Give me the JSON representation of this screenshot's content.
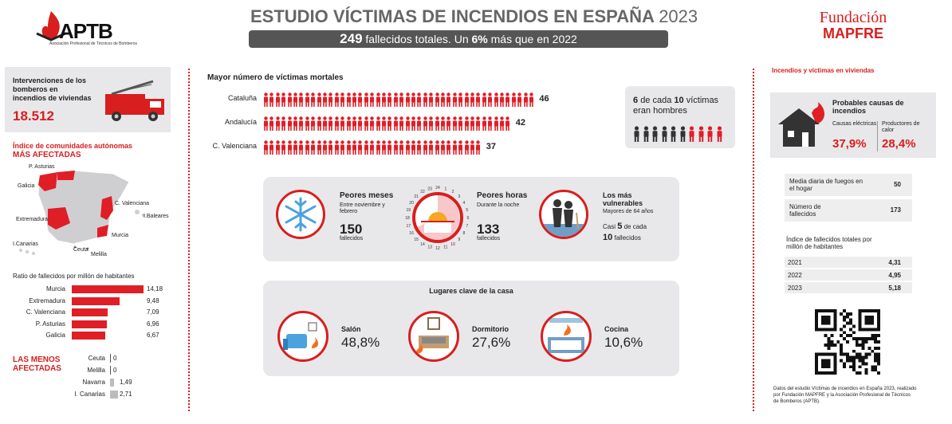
{
  "header": {
    "title_main": "ESTUDIO VÍCTIMAS DE INCENDIOS EN ESPAÑA",
    "title_year": "2023",
    "subtitle_num": "249",
    "subtitle_mid": "fallecidos totales. Un",
    "subtitle_pct": "6%",
    "subtitle_end": "más que en 2022"
  },
  "logos": {
    "aptb": "APTB",
    "aptb_sub": "Asociación Profesional de Técnicos de Bomberos",
    "fm_line1": "Fundación",
    "fm_line2": "MAPFRE"
  },
  "left": {
    "interventions_label": "Intervenciones de los bomberos en incendios de viviendas",
    "interventions_value": "18.512",
    "index_title1": "Índice de comunidades autónomas",
    "index_title2": "MÁS AFECTADAS",
    "map_labels": [
      "P. Asturias",
      "Galicia",
      "C. Valenciana",
      "I.Baleares",
      "Extremadura",
      "Murcia",
      "I.Canarias",
      "Ceuta",
      "Melilla"
    ],
    "ratio_title": "Ratio de fallecidos por millón de habitantes",
    "top": [
      {
        "name": "Murcia",
        "value": "14,18",
        "v": 14.18
      },
      {
        "name": "Extremadura",
        "value": "9,48",
        "v": 9.48
      },
      {
        "name": "C. Valenciana",
        "value": "7,09",
        "v": 7.09
      },
      {
        "name": "P. Asturias",
        "value": "6,96",
        "v": 6.96
      },
      {
        "name": "Galicia",
        "value": "6,67",
        "v": 6.67
      }
    ],
    "least_title1": "LAS MENOS",
    "least_title2": "AFECTADAS",
    "least": [
      {
        "name": "Ceuta",
        "value": "0",
        "v": 0
      },
      {
        "name": "Melilla",
        "value": "0",
        "v": 0
      },
      {
        "name": "Navarra",
        "value": "1,49",
        "v": 1.49
      },
      {
        "name": "I. Canarias",
        "value": "2,71",
        "v": 2.71
      }
    ]
  },
  "center": {
    "most_title": "Mayor número de víctimas mortales",
    "most": [
      {
        "name": "Cataluña",
        "value": "46",
        "v": 46
      },
      {
        "name": "Andalucía",
        "value": "42",
        "v": 42
      },
      {
        "name": "C. Valenciana",
        "value": "37",
        "v": 37
      }
    ],
    "men_text_a": "6",
    "men_text_b": "de cada",
    "men_text_c": "10",
    "men_text_d": "víctimas",
    "men_text_e": "eran hombres",
    "men_ratio": 0.6,
    "worst_months_title": "Peores meses",
    "worst_months_sub": "Entre noviembre y febrero",
    "worst_months_value": "150",
    "worst_months_unit": "fallecidos",
    "worst_hours_title": "Peores horas",
    "worst_hours_sub": "Durante la noche",
    "worst_hours_value": "133",
    "worst_hours_unit": "fallecidos",
    "clock_numbers": [
      "24",
      "1",
      "2",
      "3",
      "4",
      "5",
      "6",
      "7",
      "8",
      "9",
      "10",
      "11",
      "12",
      "13",
      "14",
      "15",
      "16",
      "17",
      "18",
      "19",
      "20",
      "21",
      "22",
      "23"
    ],
    "vuln_title": "Los más vulnerables",
    "vuln_sub": "Mayores de 64 años",
    "vuln_a": "Casi",
    "vuln_b": "5",
    "vuln_c": "de cada",
    "vuln_d": "10",
    "vuln_e": "fallecidos",
    "places_title": "Lugares clave de la casa",
    "places": [
      {
        "name": "Salón",
        "value": "48,8%"
      },
      {
        "name": "Dormitorio",
        "value": "27,6%"
      },
      {
        "name": "Cocina",
        "value": "10,6%"
      }
    ]
  },
  "right": {
    "title": "Incendios y víctimas en viviendas",
    "causes_title": "Probables causas de incendios",
    "cause1_label": "Causas eléctricas",
    "cause1_value": "37,9%",
    "cause2_label": "Productores de calor",
    "cause2_value": "28,4%",
    "daily_label": "Media diaria de fuegos en el hogar",
    "daily_value": "50",
    "deaths_label": "Número de fallecidos",
    "deaths_value": "173",
    "index_title": "Índice de fallecidos totales por millón de habitantes",
    "years": [
      {
        "year": "2021",
        "value": "4,31"
      },
      {
        "year": "2022",
        "value": "4,95"
      },
      {
        "year": "2023",
        "value": "5,18"
      }
    ],
    "footer": "Datos del estudio Víctimas de incendios en España 2023, realizado por Fundación MAPFRE y la Asociación Profesional de Técnicos de Bomberos (APTB)."
  }
}
